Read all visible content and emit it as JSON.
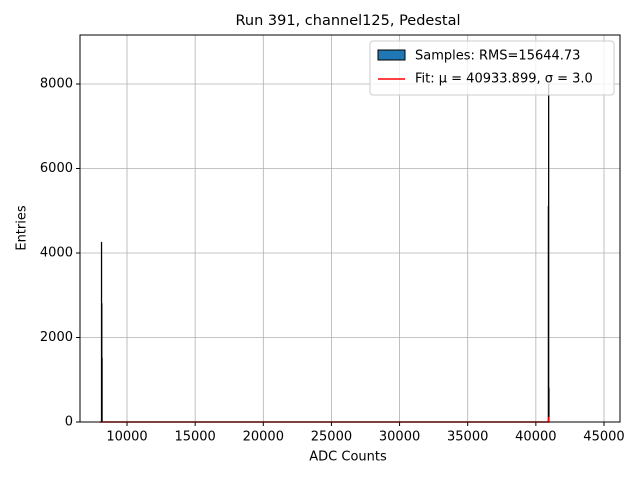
{
  "chart_data": {
    "type": "histogram",
    "title": "Run 391, channel125, Pedestal",
    "x_label": "ADC Counts",
    "y_label": "Entries",
    "bins": [
      8120,
      8140,
      8160,
      8180,
      40910,
      40930,
      40950,
      40970
    ],
    "counts": [
      4250,
      2800,
      1500,
      0,
      5100,
      8000,
      800
    ],
    "hist_name": "Samples: RMS=15644.73",
    "hist_color": "#1f77b4",
    "fit": {
      "name": "Fit: μ = 40933.899, σ = 3.0",
      "color": "#ff0000",
      "x": [
        8000,
        40920,
        40934,
        40948,
        41000
      ],
      "values": [
        0,
        0,
        120,
        0,
        0
      ]
    },
    "xlim": [
      6550,
      46175
    ],
    "ylim": [
      0,
      9160
    ],
    "xticks": [
      10000,
      15000,
      20000,
      25000,
      30000,
      35000,
      40000,
      45000
    ],
    "yticks": [
      0,
      2000,
      4000,
      6000,
      8000
    ],
    "grid": true,
    "legend": "upper right"
  }
}
